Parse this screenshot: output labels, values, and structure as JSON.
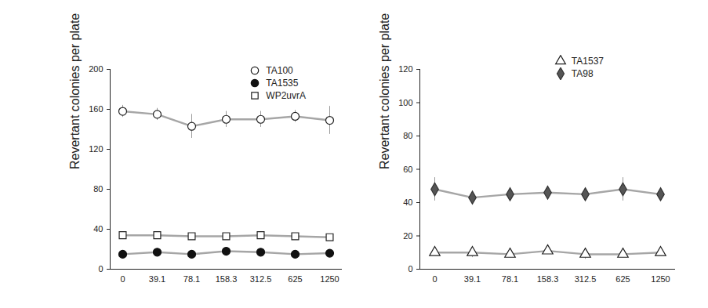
{
  "chart_data": [
    {
      "type": "line",
      "y_label": "Revertant colonies per plate",
      "categories": [
        "0",
        "39.1",
        "78.1",
        "158.3",
        "312.5",
        "625",
        "1250"
      ],
      "ylim": [
        0,
        200
      ],
      "yticks": [
        0,
        40,
        80,
        120,
        160,
        200
      ],
      "legend": "top-right",
      "series": [
        {
          "name": "TA100",
          "color": "#a6a6a6",
          "marker": "open circle",
          "values": [
            158,
            155,
            143,
            150,
            150,
            153,
            149
          ],
          "errors": [
            6,
            6,
            12,
            8,
            8,
            6,
            14
          ]
        },
        {
          "name": "TA1535",
          "color": "#a6a6a6",
          "marker": "filled circle",
          "values": [
            15,
            17,
            15,
            18,
            17,
            15,
            16
          ],
          "errors": [
            2,
            2,
            2,
            2,
            3,
            2,
            3
          ]
        },
        {
          "name": "WP2uvrA",
          "color": "#a6a6a6",
          "marker": "open square",
          "values": [
            34,
            34,
            33,
            33,
            34,
            33,
            32
          ],
          "errors": [
            2,
            2,
            2,
            2,
            2,
            2,
            2
          ]
        }
      ]
    },
    {
      "type": "line",
      "y_label": "Revertant colonies per plate",
      "categories": [
        "0",
        "39.1",
        "78.1",
        "158.3",
        "312.5",
        "625",
        "1250"
      ],
      "ylim": [
        0,
        120
      ],
      "yticks": [
        0,
        20,
        40,
        60,
        80,
        100,
        120
      ],
      "legend": "top-right",
      "series": [
        {
          "name": "TA1537",
          "color": "#a6a6a6",
          "marker": "open triangle",
          "values": [
            10,
            10,
            9,
            11,
            9,
            9,
            10
          ],
          "errors": [
            2,
            3,
            2,
            2,
            3,
            2,
            2
          ]
        },
        {
          "name": "TA98",
          "color": "#a6a6a6",
          "marker": "filled diamond",
          "values": [
            48,
            43,
            45,
            46,
            45,
            48,
            45
          ],
          "errors": [
            7,
            4,
            4,
            2,
            3,
            7,
            4
          ]
        }
      ]
    }
  ]
}
